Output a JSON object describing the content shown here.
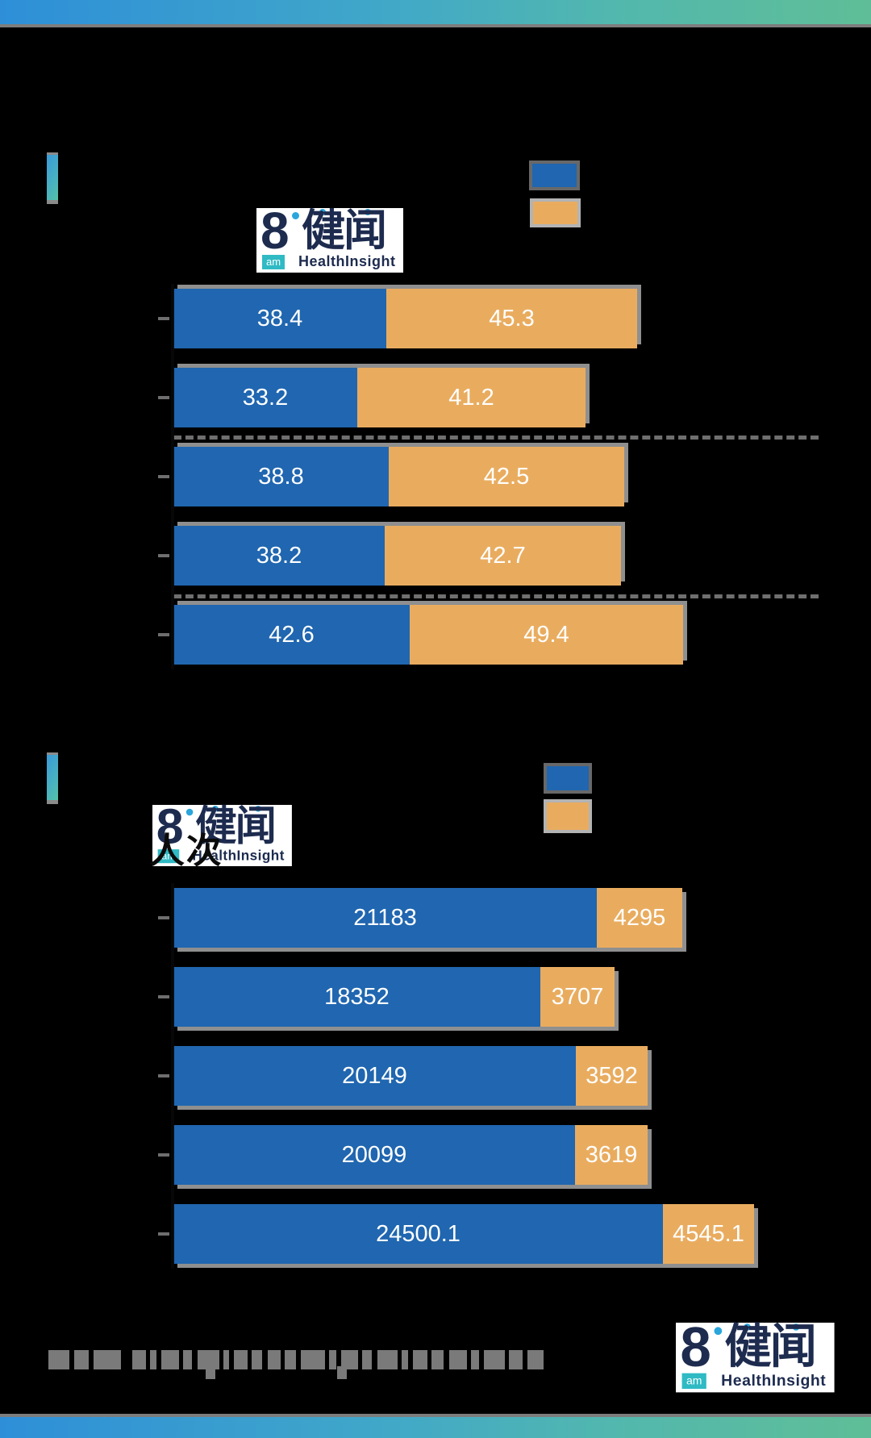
{
  "colors": {
    "series_blue": "#2066B0",
    "series_orange": "#E9AC5F",
    "brand_navy": "#1d2b4f",
    "brand_teal": "#2fbac4",
    "gradient": [
      "#2e8fd8",
      "#41a8c8",
      "#5fbe97"
    ]
  },
  "brand": {
    "numeral": "8",
    "am": "am",
    "cn": "健闻",
    "en": "HealthInsight"
  },
  "logo2_overlay_text": "人次",
  "chart_data": [
    {
      "type": "bar",
      "orientation": "horizontal",
      "stacked": true,
      "categories": [
        "",
        "",
        "",
        "",
        ""
      ],
      "series": [
        {
          "name": "series-blue",
          "color": "#2066B0",
          "values": [
            38.4,
            33.2,
            38.8,
            38.2,
            42.6
          ],
          "labels": [
            "38.4",
            "33.2",
            "38.8",
            "38.2",
            "42.6"
          ]
        },
        {
          "name": "series-orange",
          "color": "#E9AC5F",
          "values": [
            45.3,
            41.2,
            42.5,
            42.7,
            49.4
          ],
          "labels": [
            "45.3",
            "41.2",
            "42.5",
            "42.7",
            "49.4"
          ]
        }
      ],
      "title": "",
      "xlim_est": [
        0,
        92
      ],
      "value_labels": "inside-center",
      "axis_and_category_text_visible": false
    },
    {
      "type": "bar",
      "orientation": "horizontal",
      "stacked": true,
      "categories": [
        "",
        "",
        "",
        "",
        ""
      ],
      "series": [
        {
          "name": "series-blue",
          "color": "#2066B0",
          "values": [
            21183,
            18352,
            20149,
            20099,
            24500.1
          ],
          "labels": [
            "21183",
            "18352",
            "20149",
            "20099",
            "24500.1"
          ]
        },
        {
          "name": "series-orange",
          "color": "#E9AC5F",
          "values": [
            4295,
            3707,
            3592,
            3619,
            4545.1
          ],
          "labels": [
            "4295",
            "3707",
            "3592",
            "3619",
            "4545.1"
          ]
        }
      ],
      "title": "",
      "xlim_est": [
        0,
        29045.2
      ],
      "value_labels": "inside-center",
      "axis_and_category_text_visible": false
    }
  ],
  "footer": {
    "note_legible": false,
    "fragments": [
      [
        26,
        6
      ],
      [
        18,
        6
      ],
      [
        34,
        14
      ],
      [
        17,
        5
      ],
      [
        8,
        6
      ],
      [
        22,
        5
      ],
      [
        11,
        7
      ],
      [
        27,
        5
      ],
      [
        7,
        6
      ],
      [
        17,
        5
      ],
      [
        13,
        7
      ],
      [
        16,
        5
      ],
      [
        14,
        6
      ],
      [
        30,
        5
      ],
      [
        9,
        6
      ],
      [
        21,
        5
      ],
      [
        12,
        7
      ],
      [
        25,
        5
      ],
      [
        8,
        6
      ],
      [
        18,
        5
      ],
      [
        15,
        7
      ],
      [
        22,
        5
      ],
      [
        10,
        6
      ],
      [
        26,
        5
      ],
      [
        17,
        6
      ],
      [
        20,
        0
      ]
    ],
    "descender_offsets": [
      195,
      358
    ]
  }
}
